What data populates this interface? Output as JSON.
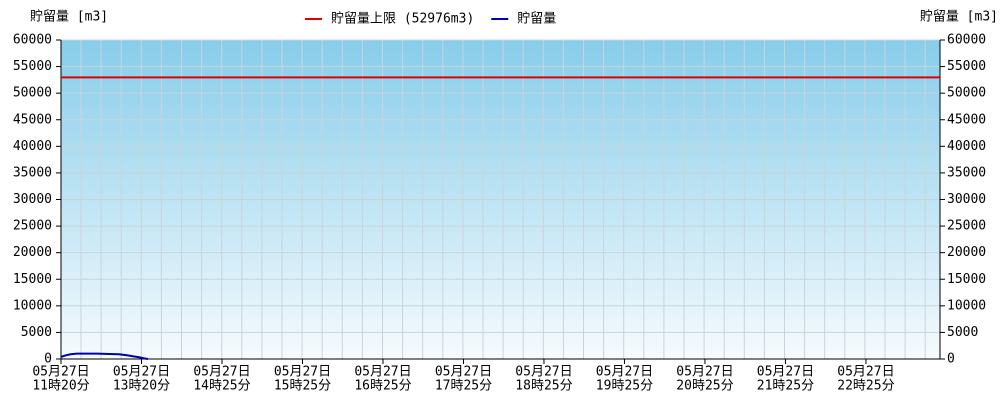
{
  "chart_data": {
    "type": "line",
    "y_title": "貯留量 [m3]",
    "y2_title": "貯留量 [m3]",
    "categories": [
      [
        "05月27日",
        "11時20分"
      ],
      [
        "05月27日",
        "13時20分"
      ],
      [
        "05月27日",
        "14時25分"
      ],
      [
        "05月27日",
        "15時25分"
      ],
      [
        "05月27日",
        "16時25分"
      ],
      [
        "05月27日",
        "17時25分"
      ],
      [
        "05月27日",
        "18時25分"
      ],
      [
        "05月27日",
        "19時25分"
      ],
      [
        "05月27日",
        "20時25分"
      ],
      [
        "05月27日",
        "21時25分"
      ],
      [
        "05月27日",
        "22時25分"
      ]
    ],
    "xlim": [
      0,
      10.92
    ],
    "ylim": [
      0,
      60000
    ],
    "yticks": [
      0,
      5000,
      10000,
      15000,
      20000,
      25000,
      30000,
      35000,
      40000,
      45000,
      50000,
      55000,
      60000
    ],
    "y2lim": [
      0,
      60000
    ],
    "y2ticks": [
      0,
      5000,
      10000,
      15000,
      20000,
      25000,
      30000,
      35000,
      40000,
      45000,
      50000,
      55000,
      60000
    ],
    "grid": true,
    "series": [
      {
        "name": "貯留量上限 (52976m3)",
        "color": "#e00000",
        "x": [
          0,
          10.92
        ],
        "values": [
          52976,
          52976
        ]
      },
      {
        "name": "貯留量",
        "color": "#0000b0",
        "x": [
          0,
          0.06,
          0.12,
          0.2,
          0.3,
          0.45,
          0.6,
          0.72,
          0.82,
          0.9,
          0.98,
          1.04,
          1.08
        ],
        "values": [
          400,
          700,
          900,
          1000,
          1000,
          1000,
          950,
          900,
          700,
          500,
          300,
          100,
          0
        ]
      }
    ]
  }
}
